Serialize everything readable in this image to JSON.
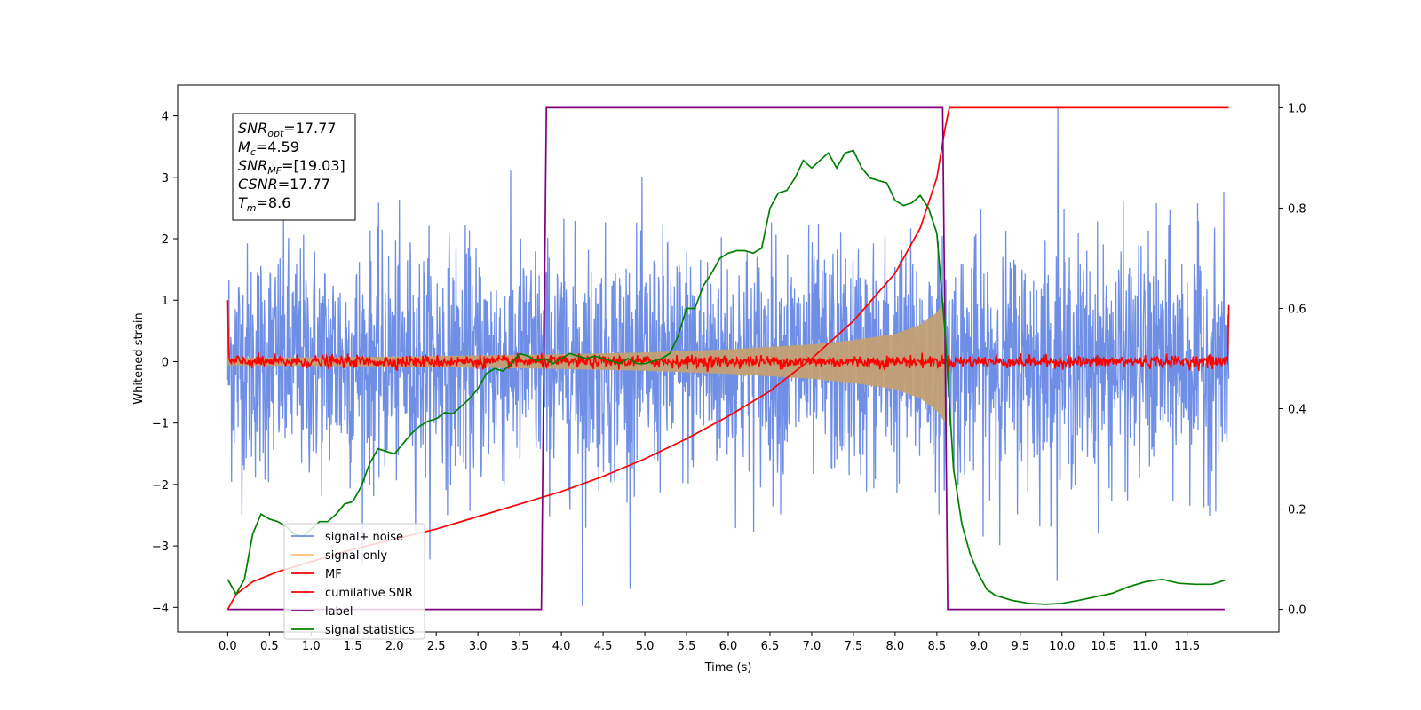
{
  "chart_data": {
    "type": "line",
    "xlabel": "Time (s)",
    "ylabel": "Whitened strain",
    "xlim": [
      -0.6,
      12.6
    ],
    "ylim": [
      -4.4,
      4.5
    ],
    "y2lim": [
      -0.045,
      1.045
    ],
    "xticks": [
      0.0,
      0.5,
      1.0,
      1.5,
      2.0,
      2.5,
      3.0,
      3.5,
      4.0,
      4.5,
      5.0,
      5.5,
      6.0,
      6.5,
      7.0,
      7.5,
      8.0,
      8.5,
      9.0,
      9.5,
      10.0,
      10.5,
      11.0,
      11.5
    ],
    "xtick_labels": [
      "0.0",
      "0.5",
      "1.0",
      "1.5",
      "2.0",
      "2.5",
      "3.0",
      "3.5",
      "4.0",
      "4.5",
      "5.0",
      "5.5",
      "6.0",
      "6.5",
      "7.0",
      "7.5",
      "8.0",
      "8.5",
      "9.0",
      "9.5",
      "10.0",
      "10.5",
      "11.0",
      "11.5"
    ],
    "yticks": [
      -4,
      -3,
      -2,
      -1,
      0,
      1,
      2,
      3,
      4
    ],
    "ytick_labels": [
      "−4",
      "−3",
      "−2",
      "−1",
      "0",
      "1",
      "2",
      "3",
      "4"
    ],
    "y2ticks": [
      0.0,
      0.2,
      0.4,
      0.6,
      0.8,
      1.0
    ],
    "y2tick_labels": [
      "0.0",
      "0.2",
      "0.4",
      "0.6",
      "0.8",
      "1.0"
    ],
    "legend_placement": "lower-left",
    "grid": false,
    "annotation": {
      "lines": [
        {
          "sym": "SNR",
          "sub": "opt",
          "value": "=17.77"
        },
        {
          "sym": "M",
          "sub": "c",
          "value": "=4.59"
        },
        {
          "sym": "SNR",
          "sub": "MF",
          "value": "=[19.03]"
        },
        {
          "sym": "CSNR",
          "sub": "",
          "value": "=17.77"
        },
        {
          "sym": "T",
          "sub": "m",
          "value": "=8.6"
        }
      ]
    },
    "signal_noise": {
      "x_range": [
        0.0,
        12.0
      ],
      "base_envelope": 1.5,
      "peak_y": 4.15,
      "peak_x": 9.95,
      "min_y": -3.98,
      "min_x": 4.25
    },
    "signal_only": {
      "envelope": [
        [
          0.0,
          0.06
        ],
        [
          1.0,
          0.07
        ],
        [
          2.0,
          0.08
        ],
        [
          3.0,
          0.1
        ],
        [
          4.0,
          0.12
        ],
        [
          5.0,
          0.15
        ],
        [
          6.0,
          0.2
        ],
        [
          7.0,
          0.28
        ],
        [
          7.5,
          0.35
        ],
        [
          8.0,
          0.45
        ],
        [
          8.3,
          0.6
        ],
        [
          8.5,
          0.8
        ],
        [
          8.6,
          1.0
        ],
        [
          8.62,
          0.0
        ]
      ]
    },
    "mf": {
      "x_range": [
        0.0,
        12.0
      ],
      "start_y": 1.0,
      "end_y": 0.92,
      "noise_amp": 0.05
    },
    "series": [
      {
        "name": "signal+ noise",
        "color": "#6f8fe6",
        "axis": "left"
      },
      {
        "name": "signal only",
        "color": "#ffbf7a",
        "axis": "left"
      },
      {
        "name": "MF",
        "color": "#ff0000",
        "axis": "left"
      },
      {
        "name": "cumilative SNR",
        "color": "#ff0000",
        "axis": "right",
        "points": [
          [
            0.0,
            0.0
          ],
          [
            0.1,
            0.03
          ],
          [
            0.3,
            0.055
          ],
          [
            0.6,
            0.075
          ],
          [
            1.0,
            0.095
          ],
          [
            1.5,
            0.12
          ],
          [
            2.0,
            0.14
          ],
          [
            2.5,
            0.16
          ],
          [
            3.0,
            0.185
          ],
          [
            3.5,
            0.21
          ],
          [
            4.0,
            0.235
          ],
          [
            4.5,
            0.265
          ],
          [
            5.0,
            0.3
          ],
          [
            5.5,
            0.34
          ],
          [
            6.0,
            0.385
          ],
          [
            6.5,
            0.435
          ],
          [
            7.0,
            0.5
          ],
          [
            7.5,
            0.575
          ],
          [
            8.0,
            0.67
          ],
          [
            8.3,
            0.76
          ],
          [
            8.5,
            0.86
          ],
          [
            8.6,
            0.96
          ],
          [
            8.65,
            1.0
          ],
          [
            12.0,
            1.0
          ]
        ]
      },
      {
        "name": "label",
        "color": "#800080",
        "axis": "right",
        "points": [
          [
            0.0,
            0.0
          ],
          [
            3.76,
            0.0
          ],
          [
            3.82,
            1.0
          ],
          [
            8.57,
            1.0
          ],
          [
            8.63,
            0.0
          ],
          [
            11.95,
            0.0
          ]
        ]
      },
      {
        "name": "signal statistics",
        "color": "#008000",
        "axis": "right",
        "points": [
          [
            0.0,
            0.06
          ],
          [
            0.1,
            0.03
          ],
          [
            0.2,
            0.06
          ],
          [
            0.3,
            0.15
          ],
          [
            0.4,
            0.19
          ],
          [
            0.5,
            0.18
          ],
          [
            0.6,
            0.175
          ],
          [
            0.7,
            0.165
          ],
          [
            0.8,
            0.15
          ],
          [
            0.9,
            0.145
          ],
          [
            1.0,
            0.16
          ],
          [
            1.1,
            0.175
          ],
          [
            1.2,
            0.175
          ],
          [
            1.3,
            0.19
          ],
          [
            1.4,
            0.21
          ],
          [
            1.5,
            0.215
          ],
          [
            1.6,
            0.245
          ],
          [
            1.7,
            0.29
          ],
          [
            1.8,
            0.32
          ],
          [
            1.9,
            0.315
          ],
          [
            2.0,
            0.31
          ],
          [
            2.1,
            0.33
          ],
          [
            2.2,
            0.35
          ],
          [
            2.3,
            0.365
          ],
          [
            2.4,
            0.375
          ],
          [
            2.5,
            0.38
          ],
          [
            2.6,
            0.392
          ],
          [
            2.7,
            0.39
          ],
          [
            2.8,
            0.405
          ],
          [
            2.9,
            0.42
          ],
          [
            3.0,
            0.44
          ],
          [
            3.1,
            0.47
          ],
          [
            3.2,
            0.48
          ],
          [
            3.3,
            0.475
          ],
          [
            3.4,
            0.49
          ],
          [
            3.5,
            0.51
          ],
          [
            3.6,
            0.505
          ],
          [
            3.7,
            0.495
          ],
          [
            3.8,
            0.5
          ],
          [
            3.9,
            0.49
          ],
          [
            4.0,
            0.5
          ],
          [
            4.1,
            0.51
          ],
          [
            4.2,
            0.505
          ],
          [
            4.3,
            0.5
          ],
          [
            4.4,
            0.505
          ],
          [
            4.5,
            0.5
          ],
          [
            4.6,
            0.495
          ],
          [
            4.7,
            0.49
          ],
          [
            4.8,
            0.5
          ],
          [
            4.9,
            0.49
          ],
          [
            5.0,
            0.49
          ],
          [
            5.1,
            0.495
          ],
          [
            5.2,
            0.5
          ],
          [
            5.3,
            0.51
          ],
          [
            5.4,
            0.545
          ],
          [
            5.5,
            0.6
          ],
          [
            5.6,
            0.6
          ],
          [
            5.7,
            0.645
          ],
          [
            5.8,
            0.67
          ],
          [
            5.9,
            0.7
          ],
          [
            6.0,
            0.71
          ],
          [
            6.1,
            0.715
          ],
          [
            6.2,
            0.715
          ],
          [
            6.3,
            0.71
          ],
          [
            6.4,
            0.72
          ],
          [
            6.5,
            0.8
          ],
          [
            6.6,
            0.83
          ],
          [
            6.7,
            0.835
          ],
          [
            6.8,
            0.86
          ],
          [
            6.9,
            0.895
          ],
          [
            7.0,
            0.88
          ],
          [
            7.1,
            0.895
          ],
          [
            7.2,
            0.91
          ],
          [
            7.3,
            0.88
          ],
          [
            7.4,
            0.91
          ],
          [
            7.5,
            0.915
          ],
          [
            7.6,
            0.88
          ],
          [
            7.7,
            0.86
          ],
          [
            7.8,
            0.855
          ],
          [
            7.9,
            0.85
          ],
          [
            8.0,
            0.815
          ],
          [
            8.1,
            0.805
          ],
          [
            8.2,
            0.81
          ],
          [
            8.3,
            0.825
          ],
          [
            8.4,
            0.8
          ],
          [
            8.5,
            0.75
          ],
          [
            8.6,
            0.55
          ],
          [
            8.7,
            0.28
          ],
          [
            8.8,
            0.17
          ],
          [
            8.9,
            0.11
          ],
          [
            9.0,
            0.07
          ],
          [
            9.1,
            0.04
          ],
          [
            9.2,
            0.028
          ],
          [
            9.4,
            0.018
          ],
          [
            9.6,
            0.012
          ],
          [
            9.8,
            0.01
          ],
          [
            10.0,
            0.012
          ],
          [
            10.2,
            0.018
          ],
          [
            10.4,
            0.025
          ],
          [
            10.6,
            0.032
          ],
          [
            10.8,
            0.045
          ],
          [
            11.0,
            0.055
          ],
          [
            11.2,
            0.06
          ],
          [
            11.4,
            0.052
          ],
          [
            11.6,
            0.05
          ],
          [
            11.8,
            0.05
          ],
          [
            11.95,
            0.058
          ]
        ]
      }
    ]
  }
}
